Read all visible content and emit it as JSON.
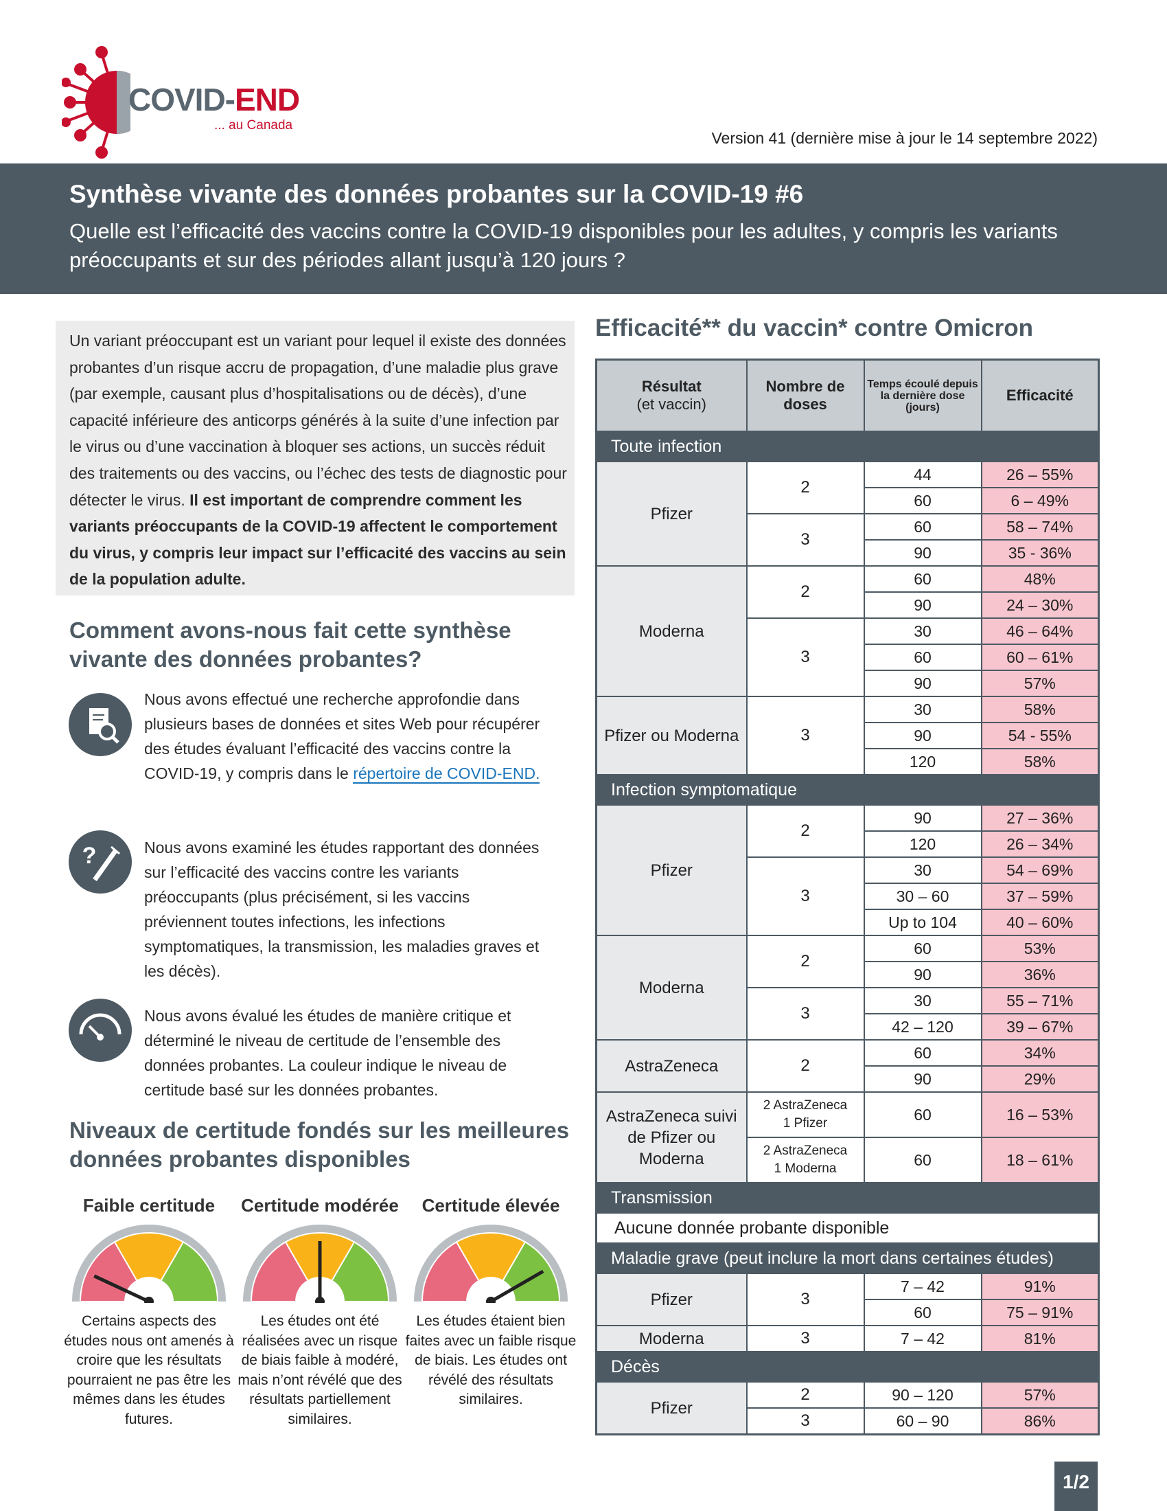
{
  "header": {
    "logo_part1": "COVID-",
    "logo_part2": "END",
    "logo_sub": "... au Canada",
    "version": "Version 41 (dernière mise à jour le 14 septembre 2022)"
  },
  "banner": {
    "title": "Synthèse vivante des données probantes sur la COVID-19 #6",
    "question": "Quelle est l’efficacité des vaccins contre la COVID-19 disponibles pour les adultes, y compris les variants préoccupants et sur des périodes allant jusqu’à 120 jours ?"
  },
  "intro": {
    "text": "Un variant préoccupant est un variant pour lequel il existe des données probantes d’un risque accru de propagation, d’une maladie plus grave (par exemple, causant plus d’hospitalisations ou de décès), d’une capacité inférieure des anticorps générés à la suite d’une infection par le virus ou d’une vaccination à bloquer ses actions, un succès réduit des traitements ou des vaccins, ou l’échec des tests de diagnostic pour détecter le virus. ",
    "bold": "Il est important de comprendre comment les variants préoccupants de la COVID-19 affectent le comportement du virus, y compris leur impact sur l’efficacité des vaccins au sein de la population adulte."
  },
  "method": {
    "heading": "Comment avons-nous fait cette synthèse vivante des données probantes?",
    "items": [
      {
        "text": "Nous avons effectué une recherche approfondie dans plusieurs bases de données et sites Web pour récupérer des études évaluant l’efficacité des vaccins contre la COVID-19, y compris dans le ",
        "link": "répertoire de COVID-END."
      },
      {
        "text": "Nous avons examiné les études rapportant des données sur l’efficacité des vaccins contre les variants préoccupants (plus précisément, si les vaccins préviennent toutes infections, les infections symptomatiques, la transmission, les maladies graves et les décès)."
      },
      {
        "text": "Nous avons évalué les études de manière critique et déterminé le niveau de certitude de l’ensemble des données probantes. La couleur indique le niveau de certitude basé sur les données probantes."
      }
    ]
  },
  "certainty": {
    "heading": "Niveaux de certitude fondés sur les meilleures données probantes disponibles",
    "levels": [
      {
        "label": "Faible certitude",
        "desc": "Certains aspects des études nous ont amenés à croire que les résultats pourraient ne pas être les mêmes dans les études futures."
      },
      {
        "label": "Certitude modérée",
        "desc": "Les études ont été réalisées avec un risque de biais faible à modéré, mais n’ont révélé que des résultats partiellement similaires."
      },
      {
        "label": "Certitude élevée",
        "desc": "Les études étaient bien faites avec un faible risque de biais. Les études ont révélé des résultats similaires."
      }
    ]
  },
  "table": {
    "title": "Efficacité** du vaccin* contre Omicron",
    "headers": {
      "result": "Résultat",
      "result_sub": "(et vaccin)",
      "doses": "Nombre de doses",
      "time": "Temps écoulé depuis la dernière dose (jours)",
      "eff": "Efficacité"
    },
    "sections": [
      {
        "title": "Toute infection",
        "groups": [
          {
            "vaccine": "Pfizer",
            "doses": [
              {
                "n": "2",
                "rows": [
                  {
                    "time": "44",
                    "eff": "26 – 55%"
                  },
                  {
                    "time": "60",
                    "eff": "6 – 49%"
                  }
                ]
              },
              {
                "n": "3",
                "rows": [
                  {
                    "time": "60",
                    "eff": "58 – 74%"
                  },
                  {
                    "time": "90",
                    "eff": "35 - 36%"
                  }
                ]
              }
            ]
          },
          {
            "vaccine": "Moderna",
            "doses": [
              {
                "n": "2",
                "rows": [
                  {
                    "time": "60",
                    "eff": "48%"
                  },
                  {
                    "time": "90",
                    "eff": "24 – 30%"
                  }
                ]
              },
              {
                "n": "3",
                "rows": [
                  {
                    "time": "30",
                    "eff": "46 – 64%"
                  },
                  {
                    "time": "60",
                    "eff": "60 – 61%"
                  },
                  {
                    "time": "90",
                    "eff": "57%"
                  }
                ]
              }
            ]
          },
          {
            "vaccine": "Pfizer ou Moderna",
            "doses": [
              {
                "n": "3",
                "rows": [
                  {
                    "time": "30",
                    "eff": "58%"
                  },
                  {
                    "time": "90",
                    "eff": "54 - 55%"
                  },
                  {
                    "time": "120",
                    "eff": "58%"
                  }
                ]
              }
            ]
          }
        ]
      },
      {
        "title": "Infection symptomatique",
        "groups": [
          {
            "vaccine": "Pfizer",
            "doses": [
              {
                "n": "2",
                "rows": [
                  {
                    "time": "90",
                    "eff": "27 – 36%"
                  },
                  {
                    "time": "120",
                    "eff": "26 – 34%"
                  }
                ]
              },
              {
                "n": "3",
                "rows": [
                  {
                    "time": "30",
                    "eff": "54 – 69%"
                  },
                  {
                    "time": "30 – 60",
                    "eff": "37 – 59%"
                  },
                  {
                    "time": "Up to 104",
                    "eff": "40 – 60%"
                  }
                ]
              }
            ]
          },
          {
            "vaccine": "Moderna",
            "doses": [
              {
                "n": "2",
                "rows": [
                  {
                    "time": "60",
                    "eff": "53%"
                  },
                  {
                    "time": "90",
                    "eff": "36%"
                  }
                ]
              },
              {
                "n": "3",
                "rows": [
                  {
                    "time": "30",
                    "eff": "55 – 71%"
                  },
                  {
                    "time": "42 – 120",
                    "eff": "39 – 67%"
                  }
                ]
              }
            ]
          },
          {
            "vaccine": "AstraZeneca",
            "doses": [
              {
                "n": "2",
                "rows": [
                  {
                    "time": "60",
                    "eff": "34%"
                  },
                  {
                    "time": "90",
                    "eff": "29%"
                  }
                ]
              }
            ]
          },
          {
            "vaccine": "AstraZeneca suivi de Pfizer ou Moderna",
            "doses": [
              {
                "n": "2 AstraZeneca",
                "n2": "1 Pfizer",
                "rows": [
                  {
                    "time": "60",
                    "eff": "16 – 53%"
                  }
                ]
              },
              {
                "n": "2 AstraZeneca",
                "n2": "1 Moderna",
                "rows": [
                  {
                    "time": "60",
                    "eff": "18 – 61%"
                  }
                ]
              }
            ]
          }
        ]
      },
      {
        "title": "Transmission",
        "note": "Aucune donnée probante disponible"
      },
      {
        "title": "Maladie grave (peut inclure la mort dans certaines études)",
        "groups": [
          {
            "vaccine": "Pfizer",
            "doses": [
              {
                "n": "3",
                "rows": [
                  {
                    "time": "7 – 42",
                    "eff": "91%"
                  },
                  {
                    "time": "60",
                    "eff": "75 – 91%"
                  }
                ]
              }
            ]
          },
          {
            "vaccine": "Moderna",
            "doses": [
              {
                "n": "3",
                "rows": [
                  {
                    "time": "7 – 42",
                    "eff": "81%"
                  }
                ]
              }
            ]
          }
        ]
      },
      {
        "title": "Décès",
        "groups": [
          {
            "vaccine": "Pfizer",
            "doses": [
              {
                "n": "2",
                "rows": [
                  {
                    "time": "90 – 120",
                    "eff": "57%"
                  }
                ]
              },
              {
                "n": "3",
                "rows": [
                  {
                    "time": "60 – 90",
                    "eff": "86%"
                  }
                ]
              }
            ]
          }
        ]
      }
    ]
  },
  "footer": {
    "page": "1/2"
  }
}
